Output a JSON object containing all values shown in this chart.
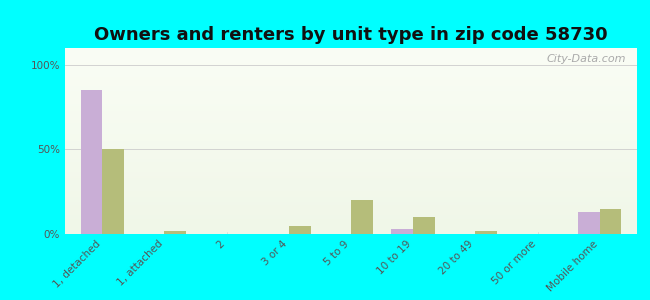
{
  "title": "Owners and renters by unit type in zip code 58730",
  "categories": [
    "1, detached",
    "1, attached",
    "2",
    "3 or 4",
    "5 to 9",
    "10 to 19",
    "20 to 49",
    "50 or more",
    "Mobile home"
  ],
  "owner_values": [
    85,
    0,
    0,
    0,
    0,
    3,
    0,
    0,
    13
  ],
  "renter_values": [
    50,
    2,
    0,
    5,
    20,
    10,
    2,
    0,
    15
  ],
  "owner_color": "#c9aed6",
  "renter_color": "#b5bd7a",
  "background_color": "#00ffff",
  "plot_bg_colors": [
    "#f0f7e8",
    "#fafdf5"
  ],
  "ylabel_ticks": [
    "0%",
    "50%",
    "100%"
  ],
  "yticks": [
    0,
    50,
    100
  ],
  "ylim": [
    0,
    110
  ],
  "bar_width": 0.35,
  "title_fontsize": 13,
  "tick_fontsize": 7.5,
  "legend_fontsize": 9,
  "watermark": "City-Data.com"
}
